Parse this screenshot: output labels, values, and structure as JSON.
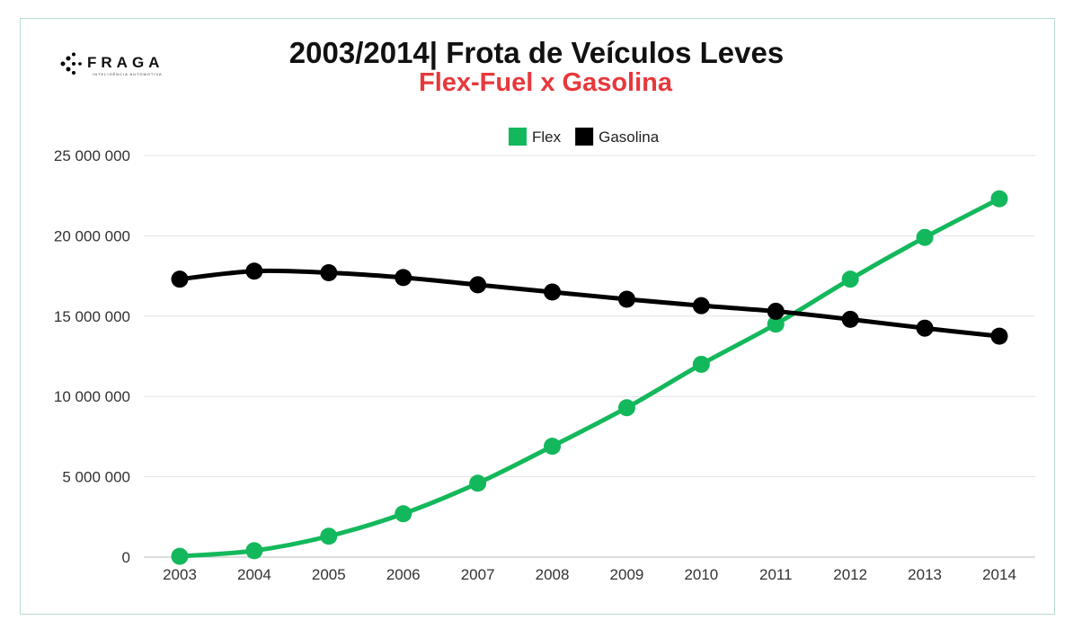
{
  "brand": {
    "name": "FRAGA",
    "tagline": "INTELIGÊNCIA AUTOMOTIVA"
  },
  "chart_data": {
    "type": "line",
    "title": "2003/2014| Frota de Veículos Leves",
    "subtitle": "Flex-Fuel x Gasolina",
    "x": [
      "2003",
      "2004",
      "2005",
      "2006",
      "2007",
      "2008",
      "2009",
      "2010",
      "2011",
      "2012",
      "2013",
      "2014"
    ],
    "series": [
      {
        "name": "Flex",
        "color": "#14b85c",
        "values": [
          50000,
          400000,
          1300000,
          2700000,
          4600000,
          6900000,
          9300000,
          12000000,
          14500000,
          17300000,
          19900000,
          22300000
        ]
      },
      {
        "name": "Gasolina",
        "color": "#000000",
        "values": [
          17300000,
          17800000,
          17700000,
          17400000,
          16950000,
          16500000,
          16050000,
          15650000,
          15300000,
          14800000,
          14250000,
          13750000
        ]
      }
    ],
    "yticks": [
      "0",
      "5 000 000",
      "10 000 000",
      "15 000 000",
      "20 000 000",
      "25 000 000"
    ],
    "ylim": [
      0,
      25000000
    ],
    "grid": true,
    "legend": "top-center"
  }
}
